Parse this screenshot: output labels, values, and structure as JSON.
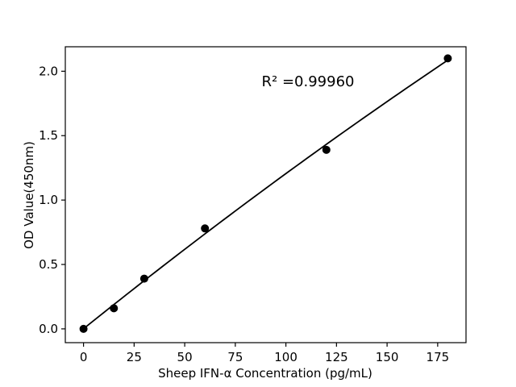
{
  "figure": {
    "background": "#ffffff"
  },
  "chart_data": {
    "type": "scatter",
    "title": "",
    "xlabel": "Sheep IFN-α Concentration (pg/mL)",
    "ylabel": "OD Value(450nm)",
    "annotation": "R² =0.99960",
    "x": [
      0,
      15,
      30,
      60,
      120,
      180
    ],
    "y": [
      0.0,
      0.16,
      0.39,
      0.78,
      1.39,
      2.1
    ],
    "fit_line": "smooth quadratic trend line drawn through the points from x=0 to x=180",
    "x_ticks": [
      "0",
      "25",
      "50",
      "75",
      "100",
      "125",
      "150",
      "175"
    ],
    "x_tick_values": [
      0,
      25,
      50,
      75,
      100,
      125,
      150,
      175
    ],
    "y_ticks": [
      "0.0",
      "0.5",
      "1.0",
      "1.5",
      "2.0"
    ],
    "y_tick_values": [
      0.0,
      0.5,
      1.0,
      1.5,
      2.0
    ],
    "xlim": [
      -9,
      189
    ],
    "ylim": [
      -0.107,
      2.19
    ],
    "grid": false,
    "legend": "none",
    "marker": {
      "shape": "circle",
      "color": "#000000",
      "radius_px": 5
    },
    "line_color": "#000000",
    "axis_color": "#000000"
  }
}
